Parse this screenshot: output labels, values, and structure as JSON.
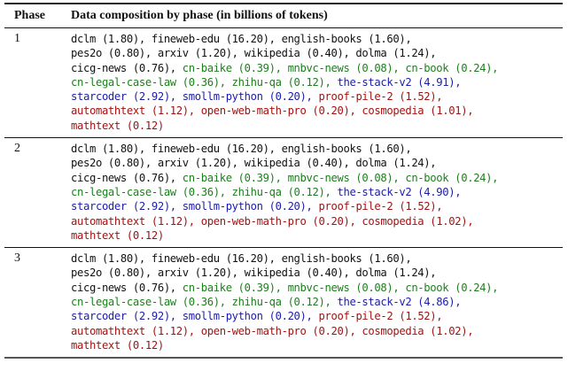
{
  "table": {
    "headers": {
      "phase": "Phase",
      "composition": "Data composition by phase (in billions of tokens)"
    },
    "colors": {
      "general": "#111111",
      "chinese": "#1e7d1e",
      "code": "#1c1ca8",
      "math": "#a31212"
    },
    "rows": [
      {
        "phase": "1",
        "lines": [
          [
            [
              "dclm (1.80), fineweb-edu (16.20), english-books (1.60),",
              "black"
            ]
          ],
          [
            [
              "pes2o (0.80), arxiv (1.20), wikipedia (0.40), dolma (1.24),",
              "black"
            ]
          ],
          [
            [
              "cicg-news (0.76), ",
              "black"
            ],
            [
              "cn-baike (0.39), mnbvc-news (0.08), cn-book (0.24),",
              "green"
            ]
          ],
          [
            [
              "cn-legal-case-law (0.36), zhihu-qa (0.12), ",
              "green"
            ],
            [
              "the-stack-v2 (4.91),",
              "blue"
            ]
          ],
          [
            [
              "starcoder (2.92), smollm-python (0.20), ",
              "blue"
            ],
            [
              "proof-pile-2 (1.52),",
              "red"
            ]
          ],
          [
            [
              "automathtext (1.12), open-web-math-pro (0.20), cosmopedia (1.01),",
              "red"
            ]
          ],
          [
            [
              "mathtext (0.12)",
              "red"
            ]
          ]
        ]
      },
      {
        "phase": "2",
        "lines": [
          [
            [
              "dclm (1.80), fineweb-edu (16.20), english-books (1.60),",
              "black"
            ]
          ],
          [
            [
              "pes2o (0.80), arxiv (1.20), wikipedia (0.40), dolma (1.24),",
              "black"
            ]
          ],
          [
            [
              "cicg-news (0.76), ",
              "black"
            ],
            [
              "cn-baike (0.39), mnbvc-news (0.08), cn-book (0.24),",
              "green"
            ]
          ],
          [
            [
              "cn-legal-case-law (0.36), zhihu-qa (0.12), ",
              "green"
            ],
            [
              "the-stack-v2 (4.90),",
              "blue"
            ]
          ],
          [
            [
              "starcoder (2.92), smollm-python (0.20), ",
              "blue"
            ],
            [
              "proof-pile-2 (1.52),",
              "red"
            ]
          ],
          [
            [
              "automathtext (1.12), open-web-math-pro (0.20), cosmopedia (1.02),",
              "red"
            ]
          ],
          [
            [
              "mathtext (0.12)",
              "red"
            ]
          ]
        ]
      },
      {
        "phase": "3",
        "lines": [
          [
            [
              "dclm (1.80), fineweb-edu (16.20), english-books (1.60),",
              "black"
            ]
          ],
          [
            [
              "pes2o (0.80), arxiv (1.20), wikipedia (0.40), dolma (1.24),",
              "black"
            ]
          ],
          [
            [
              "cicg-news (0.76), ",
              "black"
            ],
            [
              "cn-baike (0.39), mnbvc-news (0.08), cn-book (0.24),",
              "green"
            ]
          ],
          [
            [
              "cn-legal-case-law (0.36), zhihu-qa (0.12), ",
              "green"
            ],
            [
              "the-stack-v2 (4.86),",
              "blue"
            ]
          ],
          [
            [
              "starcoder (2.92), smollm-python (0.20), ",
              "blue"
            ],
            [
              "proof-pile-2 (1.52),",
              "red"
            ]
          ],
          [
            [
              "automathtext (1.12), open-web-math-pro (0.20), cosmopedia (1.02),",
              "red"
            ]
          ],
          [
            [
              "mathtext (0.12)",
              "red"
            ]
          ]
        ]
      }
    ]
  }
}
